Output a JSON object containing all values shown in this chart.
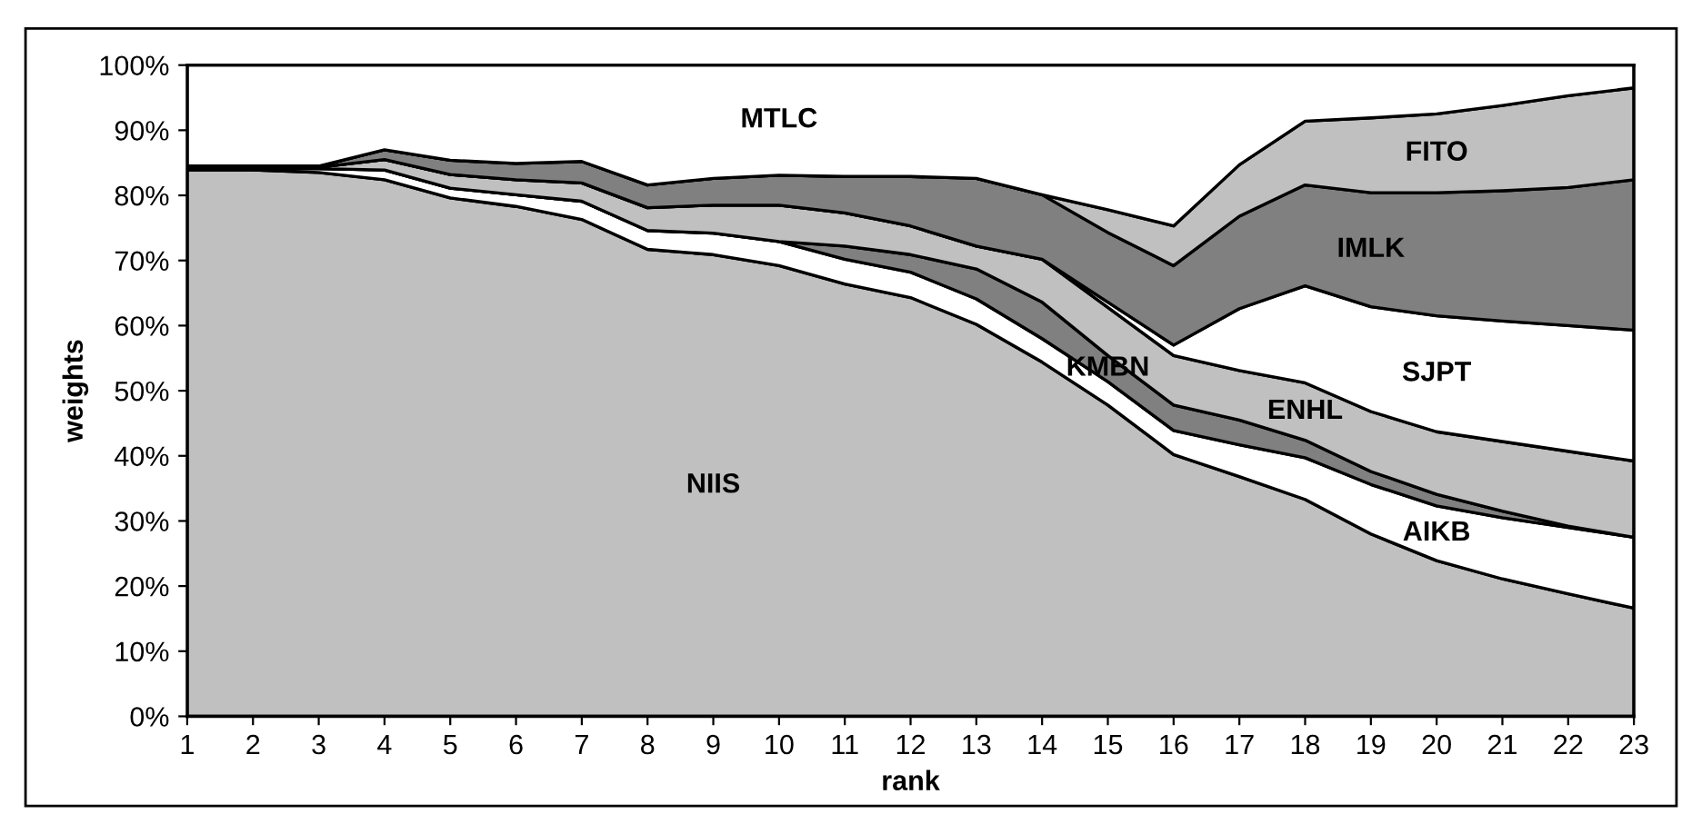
{
  "chart_data": {
    "type": "area",
    "stacked": true,
    "xlabel": "rank",
    "ylabel": "weights",
    "x": [
      1,
      2,
      3,
      4,
      5,
      6,
      7,
      8,
      9,
      10,
      11,
      12,
      13,
      14,
      15,
      16,
      17,
      18,
      19,
      20,
      21,
      22,
      23
    ],
    "series": [
      {
        "name": "NIIS",
        "color": "#c0c0c0",
        "values": [
          83.9,
          83.9,
          83.5,
          82.4,
          79.6,
          78.3,
          76.3,
          71.7,
          70.9,
          69.2,
          66.4,
          64.3,
          60.2,
          54.4,
          47.8,
          40.2,
          36.8,
          33.3,
          28.0,
          23.9,
          21.1,
          18.8,
          16.6
        ]
      },
      {
        "name": "AIKB",
        "color": "#ffffff",
        "values": [
          0.2,
          0.2,
          0.6,
          1.5,
          1.5,
          1.8,
          2.8,
          2.9,
          3.3,
          3.7,
          3.8,
          3.9,
          3.9,
          3.6,
          3.6,
          3.7,
          4.9,
          6.4,
          7.6,
          8.4,
          9.4,
          10.2,
          10.9
        ]
      },
      {
        "name": "KMBN",
        "color": "#808080",
        "values": [
          0,
          0,
          0,
          0,
          0,
          0,
          0,
          0,
          0,
          0,
          2.0,
          2.7,
          4.6,
          5.6,
          4.0,
          3.9,
          3.8,
          2.7,
          2.0,
          1.8,
          1.0,
          0.2,
          0.0
        ]
      },
      {
        "name": "ENHL",
        "color": "#c0c0c0",
        "values": [
          0.2,
          0.2,
          0.2,
          1.6,
          2.1,
          2.3,
          2.8,
          3.5,
          4.3,
          5.6,
          5.1,
          4.4,
          3.5,
          6.6,
          7.4,
          7.6,
          7.6,
          8.8,
          9.2,
          9.6,
          10.7,
          11.5,
          11.7
        ]
      },
      {
        "name": "SJPT",
        "color": "#ffffff",
        "values": [
          0,
          0,
          0,
          0,
          0,
          0,
          0,
          0,
          0,
          0,
          0,
          0,
          0,
          0,
          0.8,
          1.6,
          9.5,
          14.9,
          16.1,
          17.8,
          18.5,
          19.3,
          20.1
        ]
      },
      {
        "name": "IMLK",
        "color": "#808080",
        "values": [
          0.2,
          0.2,
          0.2,
          1.5,
          2.2,
          2.5,
          3.3,
          3.5,
          4.1,
          4.6,
          5.6,
          7.6,
          10.4,
          9.9,
          10.7,
          12.2,
          14.2,
          15.5,
          17.5,
          18.9,
          20.0,
          21.2,
          23.1
        ]
      },
      {
        "name": "FITO",
        "color": "#c0c0c0",
        "values": [
          0,
          0,
          0,
          0,
          0,
          0,
          0,
          0,
          0,
          0,
          0,
          0,
          0,
          0,
          3.5,
          6.1,
          7.9,
          9.8,
          11.5,
          12.1,
          13.1,
          14.1,
          14.1
        ]
      },
      {
        "name": "MTLC",
        "color": "#ffffff",
        "values": [
          15.5,
          15.5,
          15.5,
          13.0,
          14.6,
          15.1,
          14.8,
          18.4,
          17.4,
          16.9,
          17.1,
          17.1,
          17.4,
          19.9,
          22.2,
          24.7,
          15.3,
          8.6,
          8.1,
          7.5,
          6.2,
          4.7,
          3.5
        ]
      }
    ],
    "xlim": [
      1,
      23
    ],
    "xticks": [
      1,
      2,
      3,
      4,
      5,
      6,
      7,
      8,
      9,
      10,
      11,
      12,
      13,
      14,
      15,
      16,
      17,
      18,
      19,
      20,
      21,
      22,
      23
    ],
    "ylim": [
      0,
      100
    ],
    "yticks": [
      {
        "value": 0,
        "label": "0%"
      },
      {
        "value": 10,
        "label": "10%"
      },
      {
        "value": 20,
        "label": "20%"
      },
      {
        "value": 30,
        "label": "30%"
      },
      {
        "value": 40,
        "label": "40%"
      },
      {
        "value": 50,
        "label": "50%"
      },
      {
        "value": 60,
        "label": "60%"
      },
      {
        "value": 70,
        "label": "70%"
      },
      {
        "value": 80,
        "label": "80%"
      },
      {
        "value": 90,
        "label": "90%"
      },
      {
        "value": 100,
        "label": "100%"
      }
    ],
    "grid": false,
    "legend": false
  }
}
